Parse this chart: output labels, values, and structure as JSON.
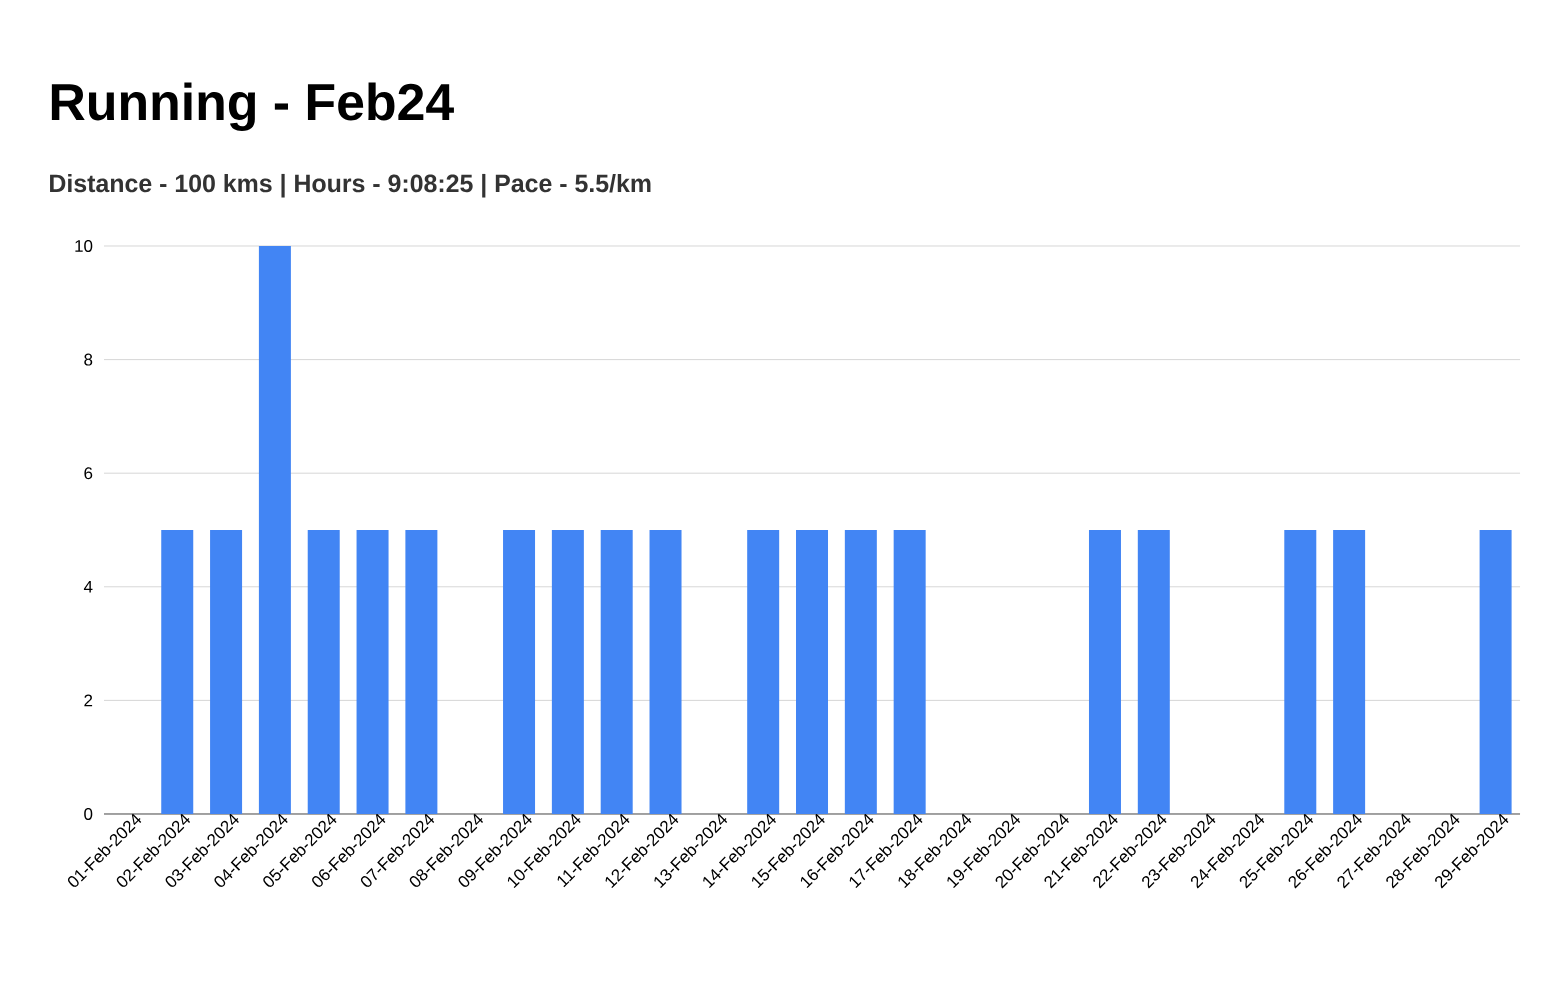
{
  "chart_data": {
    "type": "bar",
    "title": "Running - Feb24",
    "subtitle": "Distance - 100 kms | Hours - 9:08:25 | Pace - 5.5/km",
    "categories": [
      "01-Feb-2024",
      "02-Feb-2024",
      "03-Feb-2024",
      "04-Feb-2024",
      "05-Feb-2024",
      "06-Feb-2024",
      "07-Feb-2024",
      "08-Feb-2024",
      "09-Feb-2024",
      "10-Feb-2024",
      "11-Feb-2024",
      "12-Feb-2024",
      "13-Feb-2024",
      "14-Feb-2024",
      "15-Feb-2024",
      "16-Feb-2024",
      "17-Feb-2024",
      "18-Feb-2024",
      "19-Feb-2024",
      "20-Feb-2024",
      "21-Feb-2024",
      "22-Feb-2024",
      "23-Feb-2024",
      "24-Feb-2024",
      "25-Feb-2024",
      "26-Feb-2024",
      "27-Feb-2024",
      "28-Feb-2024",
      "29-Feb-2024"
    ],
    "values": [
      0,
      5,
      5,
      10,
      5,
      5,
      5,
      0,
      5,
      5,
      5,
      5,
      0,
      5,
      5,
      5,
      5,
      0,
      0,
      0,
      5,
      5,
      0,
      0,
      5,
      5,
      0,
      0,
      5
    ],
    "color": "#4285f4",
    "ylim": [
      0,
      10
    ],
    "yticks": [
      0,
      2,
      4,
      6,
      8,
      10
    ],
    "grid": "y"
  }
}
